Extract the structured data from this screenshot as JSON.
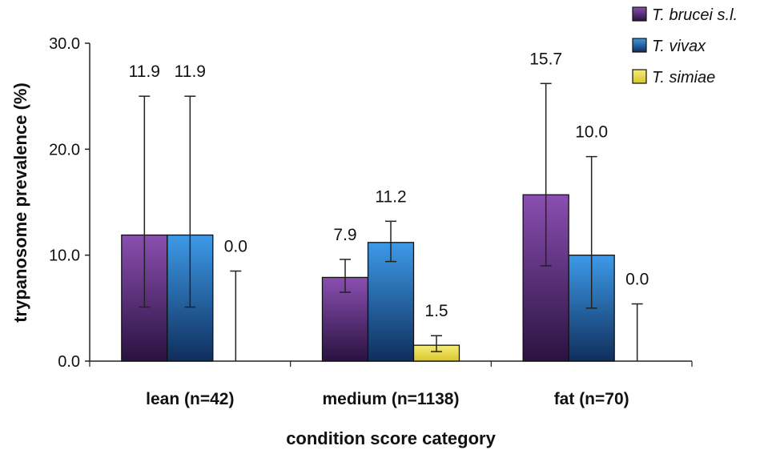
{
  "chart_data": {
    "type": "bar",
    "title": "",
    "xlabel": "condition score category",
    "ylabel": "trypanosome prevalence (%)",
    "ylim": [
      0,
      30
    ],
    "yticks": [
      "0.0",
      "10.0",
      "20.0",
      "30.0"
    ],
    "categories": [
      "lean (n=42)",
      "medium (n=1138)",
      "fat (n=70)"
    ],
    "legend_position": "top-right",
    "grid": false,
    "series": [
      {
        "name": "T. brucei s.l.",
        "color_top": "#8a4fb0",
        "color_bottom": "#2a1240",
        "values": [
          11.9,
          7.9,
          15.7
        ],
        "labels": [
          "11.9",
          "7.9",
          "15.7"
        ],
        "err_low": [
          5.1,
          6.5,
          9.0
        ],
        "err_high": [
          25.0,
          9.6,
          26.2
        ]
      },
      {
        "name": "T. vivax",
        "color_top": "#3d9ae8",
        "color_bottom": "#0f2e5c",
        "values": [
          11.9,
          11.2,
          10.0
        ],
        "labels": [
          "11.9",
          "11.2",
          "10.0"
        ],
        "err_low": [
          5.1,
          9.4,
          5.0
        ],
        "err_high": [
          25.0,
          13.2,
          19.3
        ]
      },
      {
        "name": "T. simiae",
        "color_top": "#f4ec7a",
        "color_bottom": "#d9c62a",
        "values": [
          0.0,
          1.5,
          0.0
        ],
        "labels": [
          "0.0",
          "1.5",
          "0.0"
        ],
        "err_low": [
          0.0,
          0.9,
          0.0
        ],
        "err_high": [
          8.5,
          2.4,
          5.4
        ]
      }
    ]
  }
}
